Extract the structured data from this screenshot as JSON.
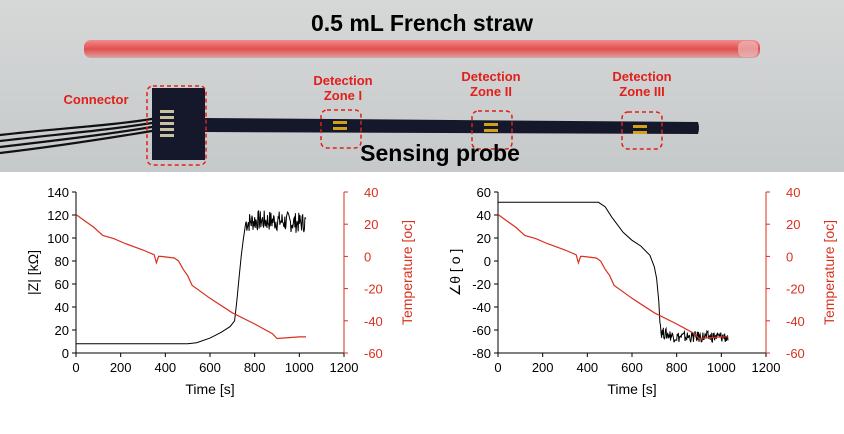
{
  "photo": {
    "title": "0.5 mL French straw",
    "probe_label": "Sensing probe",
    "connector_label": "Connector",
    "zones": [
      {
        "line1": "Detection",
        "line2": "Zone I"
      },
      {
        "line1": "Detection",
        "line2": "Zone II"
      },
      {
        "line1": "Detection",
        "line2": "Zone III"
      }
    ],
    "colors": {
      "background": "#cfd2d3",
      "straw": "#e65a5a",
      "probe": "#14182a",
      "annotation": "#e0201a",
      "electrode": "#d4a017"
    }
  },
  "chart_data": [
    {
      "type": "line",
      "xlabel": "Time [s]",
      "ylabel": "|Z| [kΩ]",
      "y2label": "Temperature [oc]",
      "xlim": [
        0,
        1200
      ],
      "ylim": [
        0,
        140
      ],
      "y2lim": [
        -60,
        40
      ],
      "xticks": [
        0,
        200,
        400,
        600,
        800,
        1000,
        1200
      ],
      "yticks": [
        0,
        20,
        40,
        60,
        80,
        100,
        120,
        140
      ],
      "y2ticks": [
        -60,
        -40,
        -20,
        0,
        20,
        40
      ],
      "grid": false,
      "series": [
        {
          "axis": "left",
          "color": "#000000",
          "noisy_from": 760,
          "noise_amplitude": 9,
          "x": [
            0,
            500,
            540,
            600,
            650,
            690,
            710,
            720,
            730,
            740,
            750,
            760,
            800,
            900,
            1000,
            1030
          ],
          "y": [
            8,
            8,
            9,
            13,
            18,
            23,
            28,
            45,
            65,
            85,
            100,
            113,
            115,
            115,
            113,
            114
          ]
        },
        {
          "axis": "right",
          "color": "#d9301f",
          "x": [
            0,
            30,
            80,
            120,
            170,
            220,
            300,
            350,
            360,
            370,
            380,
            440,
            460,
            480,
            500,
            520,
            600,
            700,
            800,
            880,
            900,
            1000,
            1030
          ],
          "y": [
            26,
            23,
            18,
            13,
            11,
            8,
            4,
            1,
            -4,
            0,
            0,
            -1,
            -3,
            -8,
            -12,
            -18,
            -26,
            -35,
            -42,
            -48,
            -51,
            -50,
            -50
          ]
        }
      ]
    },
    {
      "type": "line",
      "xlabel": "Time [s]",
      "ylabel": "∠θ [ o ]",
      "y2label": "Temperature [oc]",
      "xlim": [
        0,
        1200
      ],
      "ylim": [
        -80,
        60
      ],
      "y2lim": [
        -60,
        40
      ],
      "xticks": [
        0,
        200,
        400,
        600,
        800,
        1000,
        1200
      ],
      "yticks": [
        -80,
        -60,
        -40,
        -20,
        0,
        20,
        40,
        60
      ],
      "y2ticks": [
        -60,
        -40,
        -20,
        0,
        20,
        40
      ],
      "grid": false,
      "series": [
        {
          "axis": "left",
          "color": "#000000",
          "noisy_from": 725,
          "noise_amplitude": 5,
          "x": [
            0,
            450,
            480,
            510,
            560,
            600,
            640,
            680,
            700,
            710,
            720,
            730,
            760,
            800,
            900,
            1000,
            1030
          ],
          "y": [
            51,
            51,
            47,
            38,
            25,
            18,
            13,
            5,
            -5,
            -15,
            -35,
            -62,
            -64,
            -66,
            -66,
            -66,
            -66
          ]
        },
        {
          "axis": "right",
          "color": "#d9301f",
          "x": [
            0,
            30,
            80,
            120,
            170,
            220,
            300,
            350,
            360,
            370,
            380,
            440,
            460,
            480,
            500,
            520,
            600,
            700,
            800,
            840,
            880,
            900,
            1000,
            1030
          ],
          "y": [
            26,
            23,
            18,
            13,
            11,
            8,
            4,
            1,
            -4,
            0,
            0,
            -1,
            -3,
            -8,
            -12,
            -18,
            -26,
            -35,
            -42,
            -45,
            -48,
            -51,
            -50,
            -50
          ]
        }
      ]
    }
  ]
}
